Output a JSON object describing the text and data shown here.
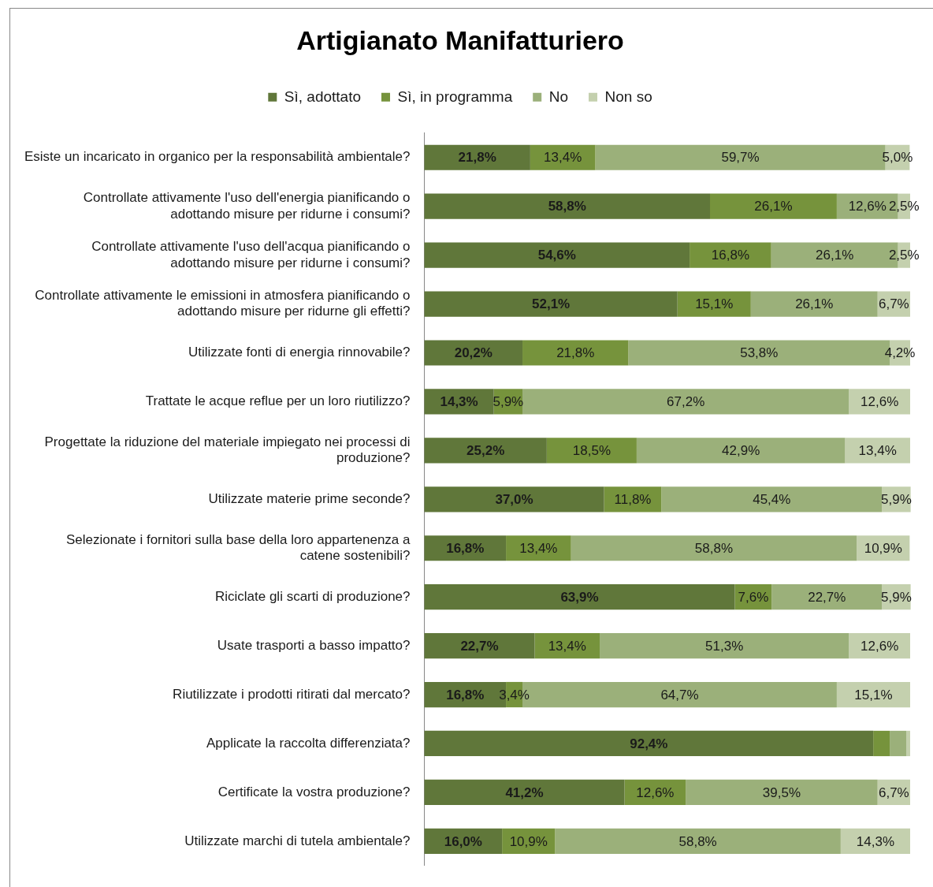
{
  "chart_data": {
    "type": "bar",
    "orientation": "horizontal",
    "stacked": true,
    "title": "Artigianato Manifatturiero",
    "legend": "top",
    "tick_labels": "y",
    "xlim": [
      0,
      100
    ],
    "categories": [
      "Esiste un incaricato in organico per la responsabilità ambientale?",
      "Controllate attivamente l'uso dell'energia pianificando o adottando misure per ridurne i consumi?",
      "Controllate attivamente l'uso dell'acqua pianificando o adottando misure per ridurne i consumi?",
      "Controllate attivamente le emissioni in atmosfera pianificando o adottando misure per ridurne gli effetti?",
      "Utilizzate fonti di energia rinnovabile?",
      "Trattate le acque reflue per un loro riutilizzo?",
      "Progettate la riduzione del materiale impiegato nei processi di produzione?",
      "Utilizzate materie prime seconde?",
      "Selezionate i fornitori sulla base della loro appartenenza a catene sostenibili?",
      "Riciclate gli scarti di produzione?",
      "Usate trasporti a basso impatto?",
      "Riutilizzate i prodotti ritirati dal mercato?",
      "Applicate la raccolta differenziata?",
      "Certificate la vostra produzione?",
      "Utilizzate marchi di tutela ambientale?"
    ],
    "series": [
      {
        "name": "Sì, adottato",
        "color": "#60773a",
        "values": [
          21.8,
          58.8,
          54.6,
          52.1,
          20.2,
          14.3,
          25.2,
          37.0,
          16.8,
          63.9,
          22.7,
          16.8,
          92.4,
          41.2,
          16.0
        ],
        "value_labels": [
          "21,8%",
          "58,8%",
          "54,6%",
          "52,1%",
          "20,2%",
          "14,3%",
          "25,2%",
          "37,0%",
          "16,8%",
          "63,9%",
          "22,7%",
          "16,8%",
          "92,4%",
          "41,2%",
          "16,0%"
        ]
      },
      {
        "name": "Sì, in programma",
        "color": "#76933c",
        "values": [
          13.4,
          26.1,
          16.8,
          15.1,
          21.8,
          5.9,
          18.5,
          11.8,
          13.4,
          7.6,
          13.4,
          3.4,
          3.4,
          12.6,
          10.9
        ],
        "value_labels": [
          "13,4%",
          "26,1%",
          "16,8%",
          "15,1%",
          "21,8%",
          "5,9%",
          "18,5%",
          "11,8%",
          "13,4%",
          "7,6%",
          "13,4%",
          "3,4%",
          null,
          "12,6%",
          "10,9%"
        ]
      },
      {
        "name": "No",
        "color": "#9bb07a",
        "values": [
          59.7,
          12.6,
          26.1,
          26.1,
          53.8,
          67.2,
          42.9,
          45.4,
          58.8,
          22.7,
          51.3,
          64.7,
          3.4,
          39.5,
          58.8
        ],
        "value_labels": [
          "59,7%",
          "12,6%",
          "26,1%",
          "26,1%",
          "53,8%",
          "67,2%",
          "42,9%",
          "45,4%",
          "58,8%",
          "22,7%",
          "51,3%",
          "64,7%",
          null,
          "39,5%",
          "58,8%"
        ]
      },
      {
        "name": "Non so",
        "color": "#c4d0ae",
        "values": [
          5.0,
          2.5,
          2.5,
          6.7,
          4.2,
          12.6,
          13.4,
          5.9,
          10.9,
          5.9,
          12.6,
          15.1,
          0.8,
          6.7,
          14.3
        ],
        "value_labels": [
          "5,0%",
          "2,5%",
          "2,5%",
          "6,7%",
          "4,2%",
          "12,6%",
          "13,4%",
          "5,9%",
          "10,9%",
          "5,9%",
          "12,6%",
          "15,1%",
          null,
          "6,7%",
          "14,3%"
        ]
      }
    ]
  }
}
